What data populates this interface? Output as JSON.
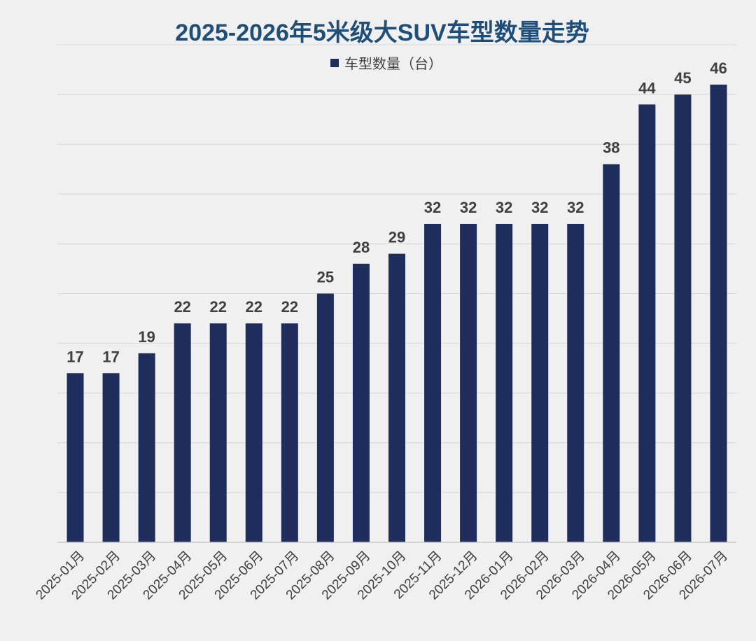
{
  "chart_data": {
    "type": "bar",
    "title": "2025-2026年5米级大SUV车型数量走势",
    "legend": {
      "position": "top",
      "label": "车型数量（台）"
    },
    "xlabel": "",
    "ylabel": "",
    "ylim": [
      0,
      50
    ],
    "grid": true,
    "categories": [
      "2025-01月",
      "2025-02月",
      "2025-03月",
      "2025-04月",
      "2025-05月",
      "2025-06月",
      "2025-07月",
      "2025-08月",
      "2025-09月",
      "2025-10月",
      "2025-11月",
      "2025-12月",
      "2026-01月",
      "2026-02月",
      "2026-03月",
      "2026-04月",
      "2026-05月",
      "2026-06月",
      "2026-07月"
    ],
    "series": [
      {
        "name": "车型数量（台）",
        "values": [
          17,
          17,
          19,
          22,
          22,
          22,
          22,
          25,
          28,
          29,
          32,
          32,
          32,
          32,
          32,
          38,
          44,
          45,
          46
        ]
      }
    ],
    "colors": {
      "bar": "#1f2d5c",
      "title": "#1f4e79",
      "grid": "#d6d6d6",
      "label": "#404040",
      "background": "#f0f0f0"
    }
  }
}
